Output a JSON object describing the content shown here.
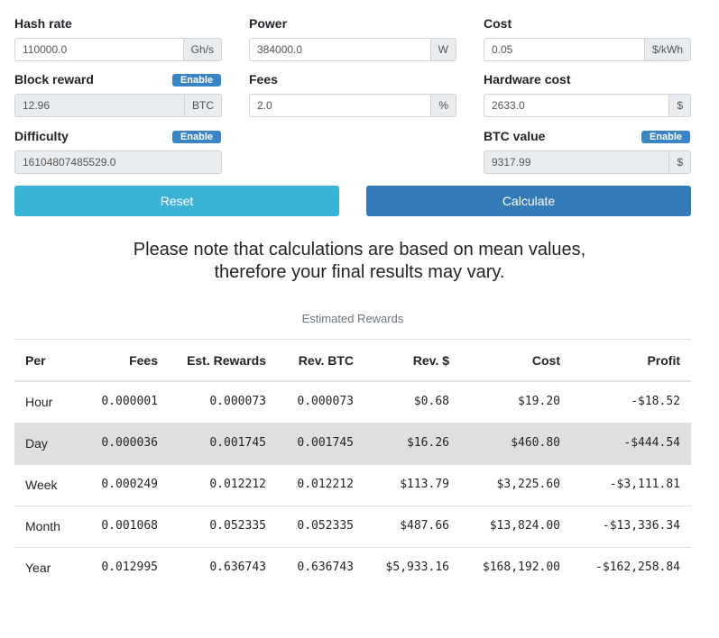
{
  "fields": [
    {
      "label": "Hash rate",
      "value": "110000.0",
      "unit": "Gh/s"
    },
    {
      "label": "Power",
      "value": "384000.0",
      "unit": "W"
    },
    {
      "label": "Cost",
      "value": "0.05",
      "unit": "$/kWh"
    },
    {
      "label": "Block reward",
      "badge": "Enable",
      "value": "12.96",
      "unit": "BTC"
    },
    {
      "label": "Fees",
      "value": "2.0",
      "unit": "%"
    },
    {
      "label": "Hardware cost",
      "value": "2633.0",
      "unit": "$"
    },
    {
      "label": "Difficulty",
      "badge": "Enable",
      "value": "16104807485529.0"
    },
    {
      "label": "BTC value",
      "badge": "Enable",
      "value": "9317.99",
      "unit": "$"
    }
  ],
  "buttons": {
    "reset": "Reset",
    "calculate": "Calculate"
  },
  "note": [
    "Please note that calculations are based on mean values,",
    "therefore your final results may vary."
  ],
  "table": {
    "caption": "Estimated Rewards",
    "columns": [
      "Per",
      "Fees",
      "Est. Rewards",
      "Rev. BTC",
      "Rev. $",
      "Cost",
      "Profit"
    ],
    "rows": [
      [
        "Hour",
        "0.000001",
        "0.000073",
        "0.000073",
        "$0.68",
        "$19.20",
        "-$18.52"
      ],
      [
        "Day",
        "0.000036",
        "0.001745",
        "0.001745",
        "$16.26",
        "$460.80",
        "-$444.54"
      ],
      [
        "Week",
        "0.000249",
        "0.012212",
        "0.012212",
        "$113.79",
        "$3,225.60",
        "-$3,111.81"
      ],
      [
        "Month",
        "0.001068",
        "0.052335",
        "0.052335",
        "$487.66",
        "$13,824.00",
        "-$13,336.34"
      ],
      [
        "Year",
        "0.012995",
        "0.636743",
        "0.636743",
        "$5,933.16",
        "$168,192.00",
        "-$162,258.84"
      ]
    ]
  }
}
